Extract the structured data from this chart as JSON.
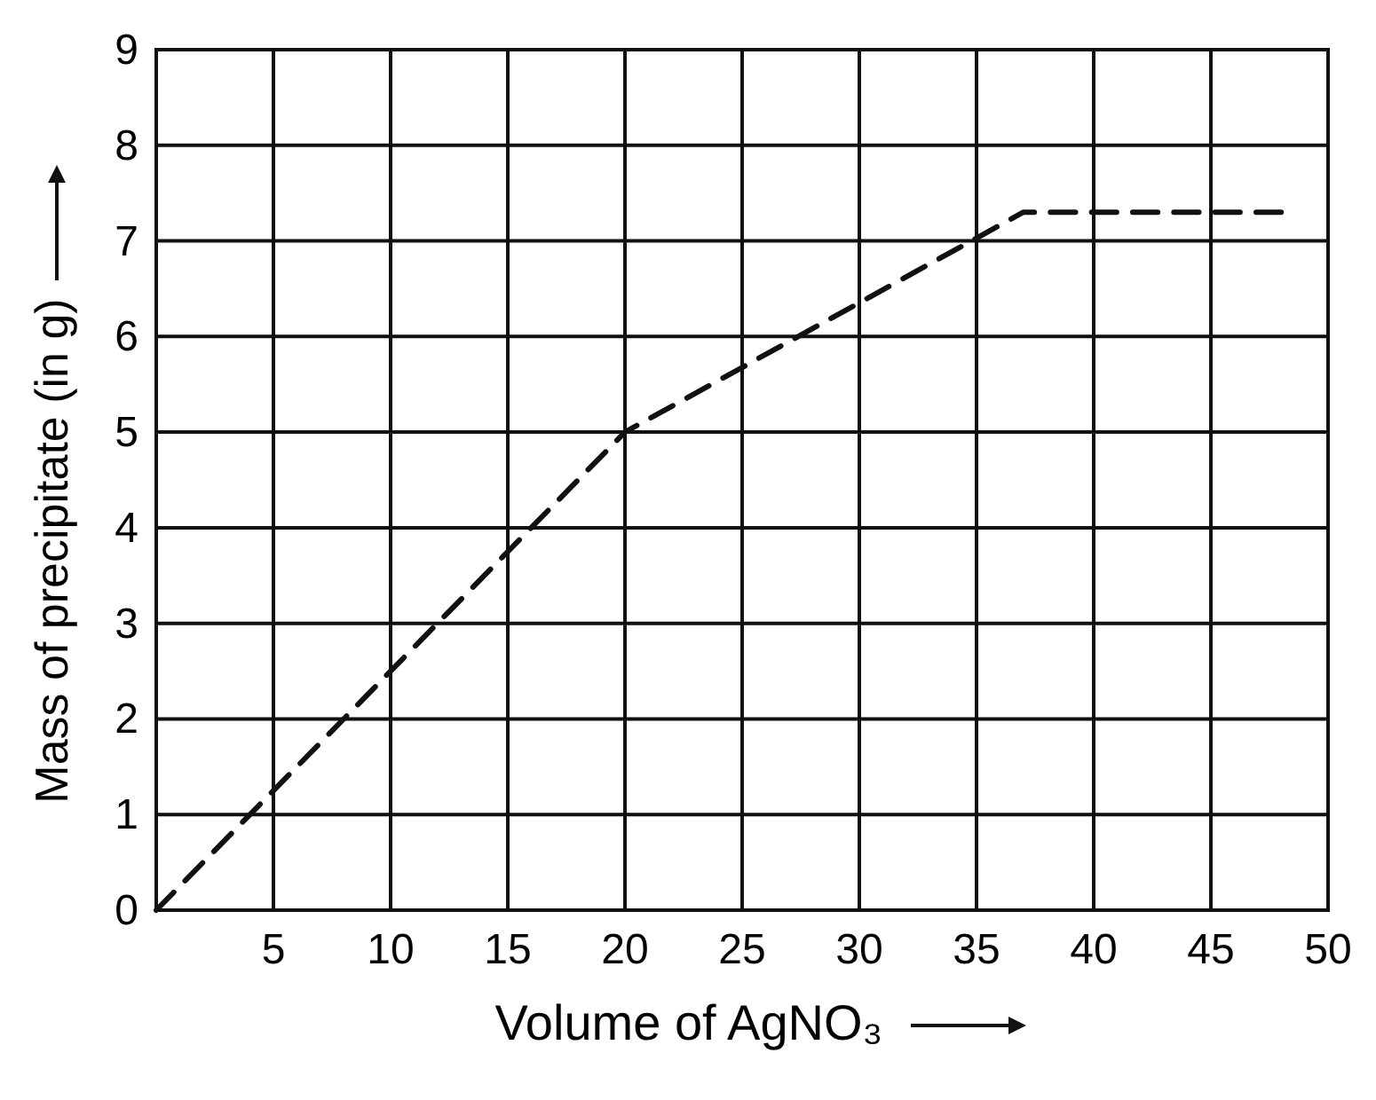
{
  "chart_data": {
    "type": "line",
    "xlabel": "Volume of AgNO₃",
    "ylabel": "Mass of precipitate (in g)",
    "xlim": [
      0,
      50
    ],
    "xticks": [
      5,
      10,
      15,
      20,
      25,
      30,
      35,
      40,
      45,
      50
    ],
    "ylim": [
      0,
      9
    ],
    "yticks": [
      0,
      1,
      2,
      3,
      4,
      5,
      6,
      7,
      8,
      9
    ],
    "grid": true,
    "line_style": "dashed",
    "marker": "none",
    "series": [
      {
        "color": "#111111",
        "x": [
          0,
          20,
          37,
          48
        ],
        "values": [
          0,
          5,
          7.3,
          7.3
        ]
      }
    ]
  }
}
